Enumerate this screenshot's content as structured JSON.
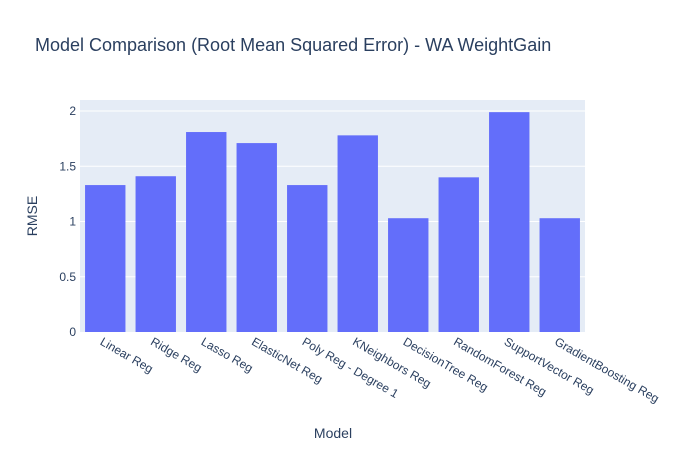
{
  "colors": {
    "bar": "#636efa",
    "plot_bg": "#e5ecf6",
    "grid": "#ffffff",
    "text": "#2a3f5f"
  },
  "chart_data": {
    "type": "bar",
    "title": "Model Comparison (Root Mean Squared Error) - WA WeightGain",
    "xlabel": "Model",
    "ylabel": "RMSE",
    "categories": [
      "Linear Reg",
      "Ridge Reg",
      "Lasso Reg",
      "ElasticNet Reg",
      "Poly Reg - Degree 1",
      "KNeighbors Reg",
      "DecisionTree Reg",
      "RandomForest Reg",
      "SupportVector Reg",
      "GradientBoosting Reg"
    ],
    "values": [
      1.33,
      1.41,
      1.81,
      1.71,
      1.33,
      1.78,
      1.03,
      1.4,
      1.99,
      1.03
    ],
    "ylim": [
      0,
      2.1
    ],
    "yticks": [
      0,
      0.5,
      1,
      1.5,
      2
    ],
    "ytick_labels": [
      "0",
      "0.5",
      "1",
      "1.5",
      "2"
    ],
    "grid": true,
    "legend": false
  }
}
